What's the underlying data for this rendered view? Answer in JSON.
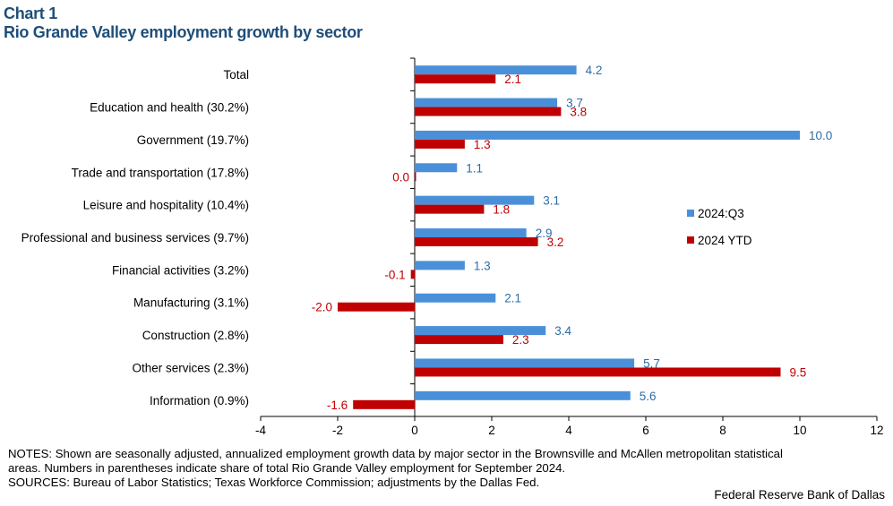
{
  "header": {
    "chart_number": "Chart 1",
    "title": "Rio Grande Valley employment growth by sector"
  },
  "colors": {
    "title": "#1f4e79",
    "series_q3": "#4a90d9",
    "series_ytd": "#c00000",
    "label_q3": "#2e6da4",
    "label_ytd": "#c00000"
  },
  "chart_data": {
    "type": "bar",
    "orientation": "horizontal",
    "title": "Rio Grande Valley employment growth by sector",
    "categories": [
      "Total",
      "Education and health (30.2%)",
      "Government (19.7%)",
      "Trade and transportation (17.8%)",
      "Leisure and hospitality (10.4%)",
      "Professional and business services (9.7%)",
      "Financial activities (3.2%)",
      "Manufacturing (3.1%)",
      "Construction (2.8%)",
      "Other services (2.3%)",
      "Information (0.9%)"
    ],
    "series": [
      {
        "name": "2024:Q3",
        "values": [
          4.2,
          3.7,
          10.0,
          1.1,
          3.1,
          2.9,
          1.3,
          2.1,
          3.4,
          5.7,
          5.6
        ],
        "labels": [
          "4.2",
          "3.7",
          "10.0",
          "1.1",
          "3.1",
          "2.9",
          "1.3",
          "2.1",
          "3.4",
          "5.7",
          "5.6"
        ]
      },
      {
        "name": "2024 YTD",
        "values": [
          2.1,
          3.8,
          1.3,
          0.0,
          1.8,
          3.2,
          -0.1,
          -2.0,
          2.3,
          9.5,
          -1.6
        ],
        "labels": [
          "2.1",
          "3.8",
          "1.3",
          "0.0",
          "1.8",
          "3.2",
          "-0.1",
          "-2.0",
          "2.3",
          "9.5",
          "-1.6"
        ]
      }
    ],
    "xlim": [
      -4,
      12
    ],
    "xticks": [
      -4,
      -2,
      0,
      2,
      4,
      6,
      8,
      10,
      12
    ],
    "xlabel": "",
    "ylabel": "",
    "grid": false,
    "legend": "right"
  },
  "footer": {
    "notes_line1": "NOTES: Shown are seasonally adjusted, annualized employment growth data by major sector in the Brownsville and McAllen metropolitan statistical",
    "notes_line2": "areas. Numbers in parentheses indicate share of total Rio Grande Valley employment for September 2024.",
    "sources": "SOURCES: Bureau of Labor Statistics; Texas Workforce Commission; adjustments by the Dallas Fed.",
    "credit": "Federal Reserve Bank of Dallas"
  }
}
